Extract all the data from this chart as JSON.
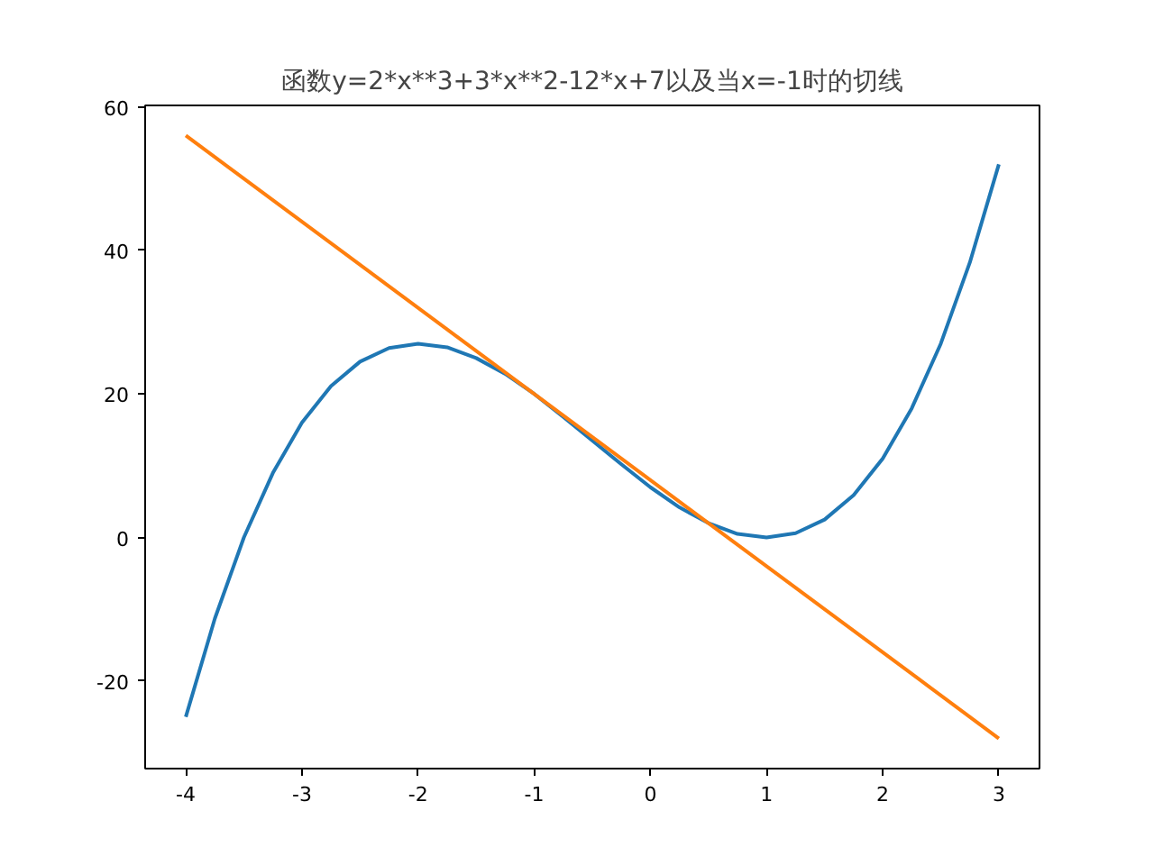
{
  "chart_data": {
    "type": "line",
    "title": "函数y=2*x**3+3*x**2-12*x+7以及当x=-1时的切线",
    "series": [
      {
        "color": "#1f77b4",
        "x": [
          -4,
          -3.75,
          -3.5,
          -3.25,
          -3,
          -2.75,
          -2.5,
          -2.25,
          -2,
          -1.75,
          -1.5,
          -1.25,
          -1,
          -0.75,
          -0.5,
          -0.25,
          0,
          0.25,
          0.5,
          0.75,
          1,
          1.25,
          1.5,
          1.75,
          2,
          2.25,
          2.5,
          2.75,
          3
        ],
        "values": [
          -25,
          -11.3,
          0,
          9.0,
          16,
          21.1,
          24.5,
          26.4,
          27,
          26.5,
          25,
          22.8,
          20,
          16.8,
          13.5,
          10.2,
          7,
          4.2,
          2,
          0.5,
          0,
          0.6,
          2.5,
          5.9,
          11,
          18.0,
          27,
          38.3,
          52
        ]
      },
      {
        "color": "#ff7f0e",
        "x": [
          -4,
          3
        ],
        "values": [
          56,
          -28
        ]
      }
    ],
    "xlim": [
      -4.35,
      3.35
    ],
    "ylim": [
      -32.2,
      60.2
    ],
    "xticks": [
      -4,
      -3,
      -2,
      -1,
      0,
      1,
      2,
      3
    ],
    "yticks": [
      -20,
      0,
      20,
      40,
      60
    ],
    "grid": false,
    "marker": "none",
    "line_style": "solid"
  }
}
